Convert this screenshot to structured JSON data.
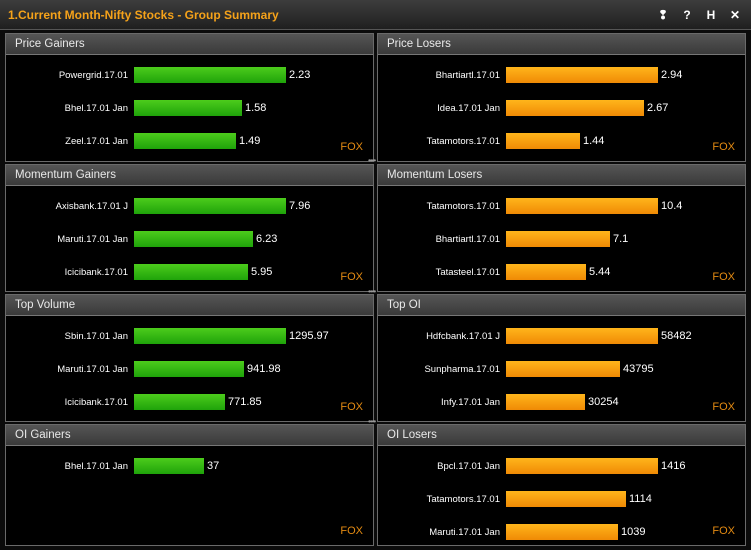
{
  "window": {
    "title": "1.Current Month-Nifty Stocks - Group Summary",
    "controls": [
      "❢",
      "?",
      "H",
      "✕"
    ]
  },
  "colors": {
    "gainer_bar": "#2fbf12",
    "loser_bar": "#f9a00e",
    "title": "#f5a21a",
    "fox": "#e38a12"
  },
  "panels": [
    {
      "title": "Price Gainers",
      "color": "green",
      "footer": "FOX",
      "max": 2.23,
      "items": [
        {
          "label": "Powergrid.17.01",
          "value": "2.23",
          "num": 2.23
        },
        {
          "label": "Bhel.17.01 Jan",
          "value": "1.58",
          "num": 1.58
        },
        {
          "label": "Zeel.17.01 Jan",
          "value": "1.49",
          "num": 1.49
        }
      ]
    },
    {
      "title": "Price Losers",
      "color": "orange",
      "footer": "FOX",
      "max": 2.94,
      "items": [
        {
          "label": "Bhartiartl.17.01",
          "value": "2.94",
          "num": 2.94
        },
        {
          "label": "Idea.17.01 Jan",
          "value": "2.67",
          "num": 2.67
        },
        {
          "label": "Tatamotors.17.01",
          "value": "1.44",
          "num": 1.44
        }
      ]
    },
    {
      "title": "Momentum Gainers",
      "color": "green",
      "footer": "FOX",
      "max": 7.96,
      "items": [
        {
          "label": "Axisbank.17.01 J",
          "value": "7.96",
          "num": 7.96
        },
        {
          "label": "Maruti.17.01 Jan",
          "value": "6.23",
          "num": 6.23
        },
        {
          "label": "Icicibank.17.01",
          "value": "5.95",
          "num": 5.95
        }
      ]
    },
    {
      "title": "Momentum Losers",
      "color": "orange",
      "footer": "FOX",
      "max": 10.4,
      "items": [
        {
          "label": "Tatamotors.17.01",
          "value": "10.4",
          "num": 10.4
        },
        {
          "label": "Bhartiartl.17.01",
          "value": "7.1",
          "num": 7.1
        },
        {
          "label": "Tatasteel.17.01",
          "value": "5.44",
          "num": 5.44
        }
      ]
    },
    {
      "title": "Top Volume",
      "color": "green",
      "footer": "FOX",
      "max": 1295.97,
      "items": [
        {
          "label": "Sbin.17.01 Jan",
          "value": "1295.97",
          "num": 1295.97
        },
        {
          "label": "Maruti.17.01 Jan",
          "value": "941.98",
          "num": 941.98
        },
        {
          "label": "Icicibank.17.01",
          "value": "771.85",
          "num": 771.85
        }
      ]
    },
    {
      "title": "Top OI",
      "color": "orange",
      "footer": "FOX",
      "max": 58482,
      "items": [
        {
          "label": "Hdfcbank.17.01 J",
          "value": "58482",
          "num": 58482
        },
        {
          "label": "Sunpharma.17.01",
          "value": "43795",
          "num": 43795
        },
        {
          "label": "Infy.17.01 Jan",
          "value": "30254",
          "num": 30254
        }
      ]
    },
    {
      "title": "OI Gainers",
      "color": "green",
      "footer": "FOX",
      "max": 80,
      "items": [
        {
          "label": "Bhel.17.01 Jan",
          "value": "37",
          "num": 37
        }
      ]
    },
    {
      "title": "OI Losers",
      "color": "orange",
      "footer": "FOX",
      "max": 1416,
      "items": [
        {
          "label": "Bpcl.17.01 Jan",
          "value": "1416",
          "num": 1416
        },
        {
          "label": "Tatamotors.17.01",
          "value": "1114",
          "num": 1114
        },
        {
          "label": "Maruti.17.01 Jan",
          "value": "1039",
          "num": 1039
        }
      ]
    }
  ]
}
